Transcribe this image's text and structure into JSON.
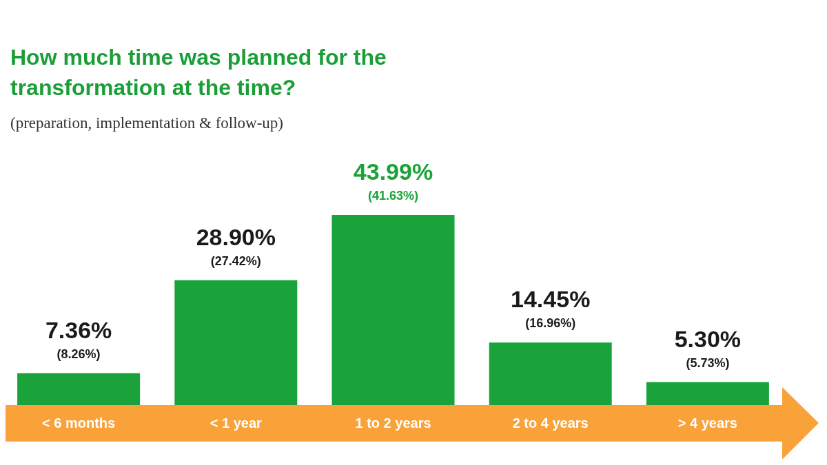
{
  "chart_data": {
    "type": "bar",
    "title": "How much time was planned for the transformation at the time?",
    "subtitle": "(preparation, implementation & follow-up)",
    "categories": [
      "< 6 months",
      "< 1 year",
      "1 to 2 years",
      "2 to 4 years",
      "> 4 years"
    ],
    "values": [
      7.36,
      28.9,
      43.99,
      14.45,
      5.3
    ],
    "color": "#1aa33a",
    "value_labels": [
      "7.36%",
      "28.90%",
      "43.99%",
      "14.45%",
      "5.30%"
    ],
    "annotations": [
      {
        "text": "(8.26%)",
        "x": "< 6 months",
        "y": 7.36
      },
      {
        "text": "(27.42%)",
        "x": "< 1 year",
        "y": 28.9
      },
      {
        "text": "(41.63%)",
        "x": "1 to 2 years",
        "y": 43.99
      },
      {
        "text": "(16.96%)",
        "x": "2 to 4 years",
        "y": 14.45
      },
      {
        "text": "(5.73%)",
        "x": "> 4 years",
        "y": 5.3
      }
    ]
  }
}
